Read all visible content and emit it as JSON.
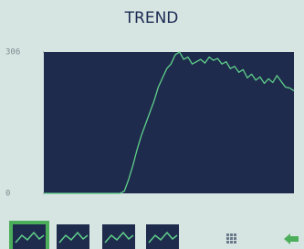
{
  "chart_data": {
    "type": "line",
    "title": "TREND",
    "values": [
      0,
      0,
      0,
      0,
      0,
      0,
      0,
      0,
      0,
      0,
      0,
      0,
      0,
      0,
      0,
      0,
      0,
      0,
      0,
      5,
      30,
      60,
      95,
      125,
      150,
      175,
      200,
      230,
      250,
      270,
      280,
      300,
      306,
      290,
      295,
      280,
      285,
      290,
      282,
      295,
      288,
      292,
      280,
      285,
      270,
      275,
      262,
      268,
      250,
      258,
      245,
      252,
      238,
      248,
      240,
      255,
      242,
      230,
      228,
      222
    ],
    "color": "#5fd08a",
    "ylim": [
      0,
      306
    ],
    "yticks": [
      0,
      306
    ],
    "grid": false
  }
}
